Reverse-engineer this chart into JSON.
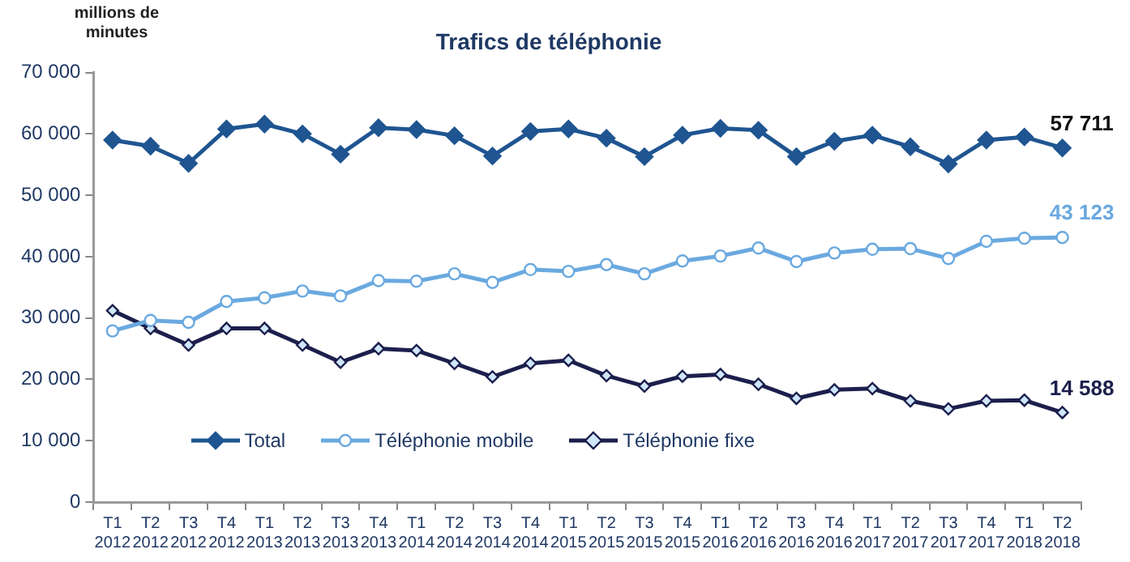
{
  "chart_data": {
    "type": "line",
    "title": "Trafics de téléphonie",
    "ylabel": "millions de minutes",
    "categories": [
      "T1 2012",
      "T2 2012",
      "T3 2012",
      "T4 2012",
      "T1 2013",
      "T2 2013",
      "T3 2013",
      "T4 2013",
      "T1 2014",
      "T2 2014",
      "T3 2014",
      "T4 2014",
      "T1 2015",
      "T2 2015",
      "T3 2015",
      "T4 2015",
      "T1 2016",
      "T2 2016",
      "T3 2016",
      "T4 2016",
      "T1 2017",
      "T2 2017",
      "T3 2017",
      "T4 2017",
      "T1 2018",
      "T2 2018"
    ],
    "series": [
      {
        "name": "Total",
        "color": "#1f5591",
        "marker": "diamond",
        "values": [
          59000,
          58000,
          55200,
          60800,
          61600,
          60000,
          56700,
          61000,
          60700,
          59700,
          56400,
          60400,
          60800,
          59300,
          56300,
          59800,
          60900,
          60600,
          56300,
          58800,
          59800,
          57900,
          55100,
          59000,
          59500,
          57711
        ]
      },
      {
        "name": "Téléphonie mobile",
        "color": "#6aa9e0",
        "marker": "circle",
        "values": [
          27900,
          29600,
          29300,
          32700,
          33300,
          34400,
          33600,
          36100,
          36000,
          37200,
          35800,
          37900,
          37600,
          38700,
          37200,
          39300,
          40100,
          41400,
          39200,
          40600,
          41200,
          41300,
          39700,
          42500,
          43000,
          43123
        ]
      },
      {
        "name": "Téléphonie fixe",
        "color": "#1c1f4c",
        "marker": "diamond",
        "values": [
          31200,
          28300,
          25600,
          28300,
          28300,
          25600,
          22800,
          25000,
          24700,
          22600,
          20400,
          22600,
          23100,
          20600,
          18900,
          20500,
          20800,
          19200,
          16900,
          18300,
          18500,
          16500,
          15200,
          16500,
          16600,
          14588
        ]
      }
    ],
    "ylim": [
      0,
      70000
    ],
    "yticks": [
      {
        "value": 0,
        "label": "0"
      },
      {
        "value": 10000,
        "label": "10 000"
      },
      {
        "value": 20000,
        "label": "20 000"
      },
      {
        "value": 30000,
        "label": "30 000"
      },
      {
        "value": 40000,
        "label": "40 000"
      },
      {
        "value": 50000,
        "label": "50 000"
      },
      {
        "value": 60000,
        "label": "60 000"
      },
      {
        "value": 70000,
        "label": "70 000"
      }
    ],
    "annotations": [
      {
        "text": "57 711",
        "x": "T2 2018",
        "y": 57711
      },
      {
        "text": "43 123",
        "x": "T2 2018",
        "y": 43123
      },
      {
        "text": "14 588",
        "x": "T2 2018",
        "y": 14588
      }
    ],
    "grid": false,
    "legend": "bottom",
    "line_style": "solid"
  }
}
